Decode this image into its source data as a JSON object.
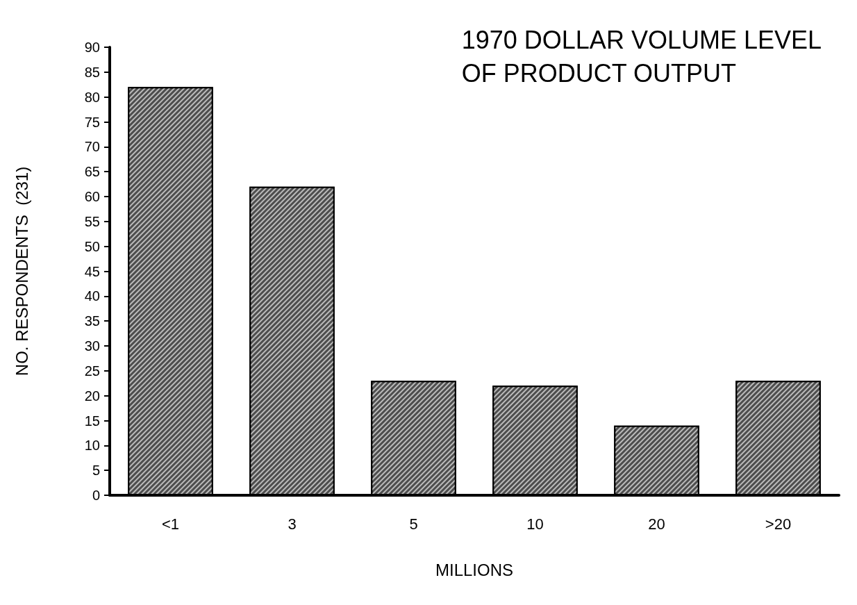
{
  "chart_data": {
    "type": "bar",
    "title": "1970 DOLLAR VOLUME LEVEL\nOF PRODUCT OUTPUT",
    "xlabel": "MILLIONS",
    "ylabel": "NO. RESPONDENTS  (231)",
    "categories": [
      "<1",
      "3",
      "5",
      "10",
      "20",
      ">20"
    ],
    "values": [
      82,
      62,
      23,
      22,
      14,
      23
    ],
    "color": "#4d4d4d",
    "ylim": [
      0,
      90
    ],
    "yticks": [
      0,
      5,
      10,
      15,
      20,
      25,
      30,
      35,
      40,
      45,
      50,
      55,
      60,
      65,
      70,
      75,
      80,
      85,
      90
    ],
    "grid": false
  }
}
